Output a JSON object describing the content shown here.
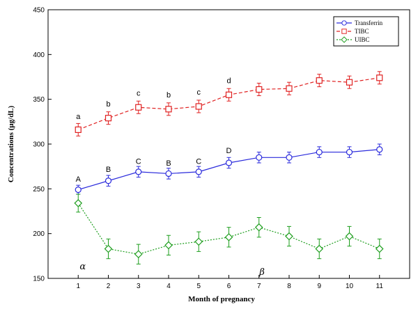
{
  "chart_data": {
    "type": "line",
    "xlabel": "Month of pregnancy",
    "ylabel": "Concentrations (μg/dL)",
    "x": [
      1,
      2,
      3,
      4,
      5,
      6,
      7,
      8,
      9,
      10,
      11
    ],
    "xlim": [
      0,
      12
    ],
    "ylim": [
      150,
      450
    ],
    "yticks": [
      150,
      200,
      250,
      300,
      350,
      400,
      450
    ],
    "xticks": [
      1,
      2,
      3,
      4,
      5,
      6,
      7,
      8,
      9,
      10,
      11
    ],
    "grid": false,
    "legend_position": "top-right",
    "series": [
      {
        "name": "Transferrin",
        "color": "#2a2adc",
        "marker": "circle",
        "line": "solid",
        "values": [
          249,
          259,
          269,
          267,
          269,
          279,
          285,
          285,
          291,
          291,
          294
        ],
        "errors": [
          5,
          6,
          6,
          6,
          6,
          6,
          6,
          6,
          6,
          6,
          6
        ]
      },
      {
        "name": "TIBC",
        "color": "#e02020",
        "marker": "square",
        "line": "dashed",
        "values": [
          316,
          329,
          341,
          339,
          342,
          355,
          361,
          362,
          371,
          369,
          374
        ],
        "errors": [
          7,
          7,
          7,
          7,
          7,
          7,
          7,
          7,
          7,
          7,
          7
        ]
      },
      {
        "name": "UIBC",
        "color": "#1e9e1e",
        "marker": "diamond",
        "line": "dotted",
        "values": [
          234,
          183,
          177,
          187,
          191,
          196,
          207,
          197,
          183,
          197,
          183
        ],
        "errors": [
          10,
          11,
          11,
          11,
          11,
          11,
          11,
          11,
          11,
          11,
          11
        ]
      }
    ],
    "annotations": [
      {
        "text": "A",
        "x": 1,
        "y": 258
      },
      {
        "text": "B",
        "x": 2,
        "y": 269
      },
      {
        "text": "C",
        "x": 3,
        "y": 278
      },
      {
        "text": "B",
        "x": 4,
        "y": 276
      },
      {
        "text": "C",
        "x": 5,
        "y": 278
      },
      {
        "text": "D",
        "x": 6,
        "y": 290
      },
      {
        "text": "a",
        "x": 1,
        "y": 328
      },
      {
        "text": "b",
        "x": 2,
        "y": 342
      },
      {
        "text": "c",
        "x": 3,
        "y": 354
      },
      {
        "text": "b",
        "x": 4,
        "y": 352
      },
      {
        "text": "c",
        "x": 5,
        "y": 355
      },
      {
        "text": "d",
        "x": 6,
        "y": 368
      },
      {
        "text": "α",
        "x": 1.15,
        "y": 160,
        "greek": true
      },
      {
        "text": "β",
        "x": 7.1,
        "y": 154,
        "greek": true
      }
    ]
  }
}
